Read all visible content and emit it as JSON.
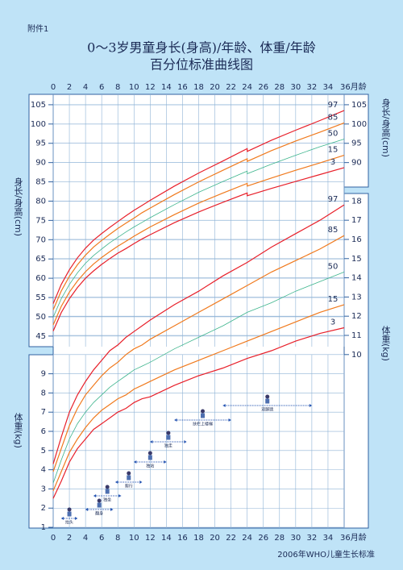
{
  "header": {
    "label": "附件1",
    "title": [
      "0～3岁男童身长(身高)/年龄、体重/年龄",
      "百分位标准曲线图"
    ]
  },
  "source": "2006年WHO儿童生长标准",
  "chart_data": [
    {
      "type": "line",
      "y_label": "身长/身高(cm)",
      "x": [
        0,
        1,
        2,
        3,
        4,
        5,
        6,
        7,
        8,
        9,
        10,
        11,
        12,
        15,
        18,
        21,
        24,
        24,
        27,
        30,
        33,
        36
      ],
      "xlim": [
        0,
        36
      ],
      "xticks": [
        0,
        2,
        4,
        6,
        8,
        10,
        12,
        14,
        16,
        18,
        20,
        22,
        24,
        26,
        28,
        30,
        32,
        34,
        {
          "value": 36,
          "label": "36月龄"
        }
      ],
      "ylim": [
        -4.8,
        107.7
      ],
      "yticks": [
        45,
        50,
        55,
        60,
        65,
        70,
        75,
        80,
        85,
        90,
        95,
        100,
        105
      ],
      "y2lim": [
        -4.8,
        107.7
      ],
      "y2ticks": [
        90,
        95,
        100,
        105
      ],
      "grid": true,
      "series": [
        {
          "name": "97",
          "color": "#e8202a",
          "values": [
            53.4,
            58.4,
            62.2,
            65.3,
            67.8,
            69.9,
            71.6,
            73.2,
            74.7,
            76.2,
            77.6,
            78.9,
            80.2,
            83.9,
            87.3,
            90.4,
            93.6,
            92.9,
            95.8,
            98.4,
            100.9,
            103.5
          ]
        },
        {
          "name": "85",
          "color": "#f07a1e",
          "values": [
            51.8,
            56.7,
            60.5,
            63.5,
            66.0,
            68.1,
            69.8,
            71.4,
            72.9,
            74.3,
            75.6,
            77.0,
            78.2,
            81.7,
            85.0,
            88.0,
            91.0,
            90.3,
            93.1,
            95.6,
            97.9,
            100.3
          ]
        },
        {
          "name": "50",
          "color": "#3cb48c",
          "values": [
            49.9,
            54.7,
            58.4,
            61.4,
            63.9,
            65.9,
            67.6,
            69.2,
            70.6,
            72.0,
            73.3,
            74.5,
            75.7,
            79.1,
            82.3,
            85.1,
            87.8,
            87.1,
            89.6,
            91.9,
            94.1,
            96.1
          ]
        },
        {
          "name": "15",
          "color": "#f07a1e",
          "values": [
            47.9,
            52.7,
            56.4,
            59.3,
            61.7,
            63.7,
            65.4,
            66.9,
            68.3,
            69.6,
            70.9,
            72.1,
            73.3,
            76.5,
            79.5,
            82.1,
            84.6,
            83.9,
            86.0,
            88.0,
            89.9,
            91.9
          ]
        },
        {
          "name": "3",
          "color": "#e8202a",
          "values": [
            46.3,
            51.1,
            54.7,
            57.6,
            60.0,
            61.9,
            63.6,
            65.1,
            66.5,
            67.7,
            69.0,
            70.2,
            71.3,
            74.4,
            77.2,
            79.7,
            82.1,
            81.4,
            83.3,
            85.1,
            86.9,
            88.7
          ]
        }
      ]
    },
    {
      "type": "line",
      "y_label": "体重(kg)",
      "x": [
        0,
        1,
        2,
        3,
        4,
        5,
        6,
        7,
        8,
        9,
        10,
        11,
        12,
        15,
        18,
        21,
        24,
        27,
        30,
        33,
        36
      ],
      "xlim": [
        0,
        36
      ],
      "xticks": [
        0,
        2,
        4,
        6,
        8,
        10,
        12,
        14,
        16,
        18,
        20,
        22,
        24,
        26,
        28,
        30,
        32,
        34,
        {
          "value": 36,
          "label": "36月龄"
        }
      ],
      "ylim": [
        0.96,
        23.56
      ],
      "yticks": [
        1,
        2,
        3,
        4,
        5,
        6,
        7,
        8,
        9
      ],
      "y2lim": [
        0.96,
        23.56
      ],
      "y2ticks": [
        10,
        11,
        12,
        13,
        14,
        15,
        16,
        17,
        18
      ],
      "grid": true,
      "series": [
        {
          "name": "97",
          "color": "#e8202a",
          "values": [
            4.3,
            5.7,
            7.0,
            7.9,
            8.6,
            9.2,
            9.7,
            10.2,
            10.5,
            10.9,
            11.2,
            11.5,
            11.8,
            12.6,
            13.3,
            14.1,
            14.8,
            15.6,
            16.3,
            17.0,
            17.8
          ]
        },
        {
          "name": "85",
          "color": "#f07a1e",
          "values": [
            3.9,
            5.1,
            6.3,
            7.2,
            7.9,
            8.4,
            8.9,
            9.3,
            9.6,
            10.0,
            10.3,
            10.5,
            10.8,
            11.5,
            12.2,
            12.9,
            13.6,
            14.3,
            14.9,
            15.5,
            16.2
          ]
        },
        {
          "name": "50",
          "color": "#3cb48c",
          "values": [
            3.3,
            4.5,
            5.6,
            6.4,
            7.0,
            7.5,
            7.9,
            8.3,
            8.6,
            8.9,
            9.2,
            9.4,
            9.6,
            10.3,
            10.9,
            11.5,
            12.2,
            12.7,
            13.3,
            13.8,
            14.3
          ]
        },
        {
          "name": "15",
          "color": "#f07a1e",
          "values": [
            2.9,
            3.9,
            4.9,
            5.6,
            6.2,
            6.7,
            7.1,
            7.4,
            7.7,
            7.9,
            8.2,
            8.4,
            8.6,
            9.2,
            9.7,
            10.2,
            10.7,
            11.2,
            11.7,
            12.2,
            12.6
          ]
        },
        {
          "name": "3",
          "color": "#e8202a",
          "values": [
            2.5,
            3.4,
            4.4,
            5.1,
            5.6,
            6.1,
            6.4,
            6.7,
            7.0,
            7.2,
            7.5,
            7.7,
            7.8,
            8.4,
            8.9,
            9.3,
            9.8,
            10.2,
            10.7,
            11.1,
            11.4
          ]
        }
      ]
    }
  ],
  "milestones": [
    {
      "label": "抬头",
      "range": [
        1,
        3
      ]
    },
    {
      "label": "翻身",
      "range": [
        4,
        7.4
      ]
    },
    {
      "label": "独坐",
      "range": [
        5,
        8.4
      ]
    },
    {
      "label": "爬行",
      "range": [
        7.7,
        11
      ]
    },
    {
      "label": "独站",
      "range": [
        10,
        14
      ]
    },
    {
      "label": "独走",
      "range": [
        12,
        16.5
      ]
    },
    {
      "label": "扶栏上楼梯",
      "range": [
        15,
        22
      ]
    },
    {
      "label": "双脚跳",
      "range": [
        21,
        32
      ]
    }
  ]
}
